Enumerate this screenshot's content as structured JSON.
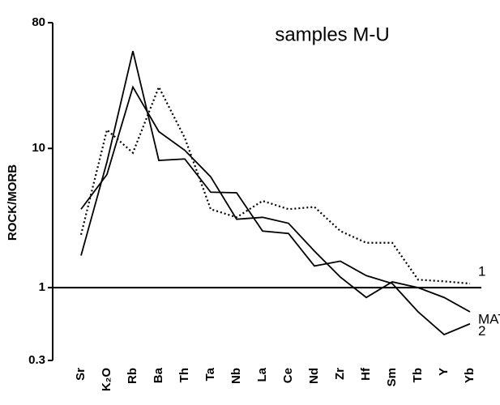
{
  "chart_data": {
    "type": "line",
    "title": "samples M-U",
    "y_label": "ROCK/MORB",
    "log_y": true,
    "categories": [
      "Sr",
      "K₂O",
      "Rb",
      "Ba",
      "Th",
      "Ta",
      "Nb",
      "La",
      "Ce",
      "Nd",
      "Zr",
      "Hf",
      "Sm",
      "Tb",
      "Y",
      "Yb"
    ],
    "ylim": [
      0.3,
      80
    ],
    "yticks": [
      0.3,
      1,
      10,
      80
    ],
    "reference_line": 1,
    "series": [
      {
        "name": "1",
        "color": "#000000",
        "style": "dotted",
        "values": [
          2.4,
          13.6,
          9.3,
          27.6,
          11.9,
          3.66,
          3.2,
          4.2,
          3.66,
          3.8,
          2.55,
          2.1,
          2.1,
          1.14,
          1.11,
          1.07
        ]
      },
      {
        "name": "MAT",
        "color": "#000000",
        "style": "solid",
        "values": [
          3.66,
          6.5,
          27.6,
          13.2,
          9.7,
          6.25,
          3.1,
          3.2,
          2.9,
          1.83,
          1.19,
          0.85,
          1.1,
          1.0,
          0.85,
          0.67
        ]
      },
      {
        "name": "2",
        "color": "#000000",
        "style": "solid",
        "values": [
          1.7,
          8,
          50,
          8.2,
          8.4,
          4.85,
          4.8,
          2.55,
          2.45,
          1.43,
          1.55,
          1.22,
          1.07,
          0.67,
          0.46,
          0.55
        ]
      }
    ]
  }
}
